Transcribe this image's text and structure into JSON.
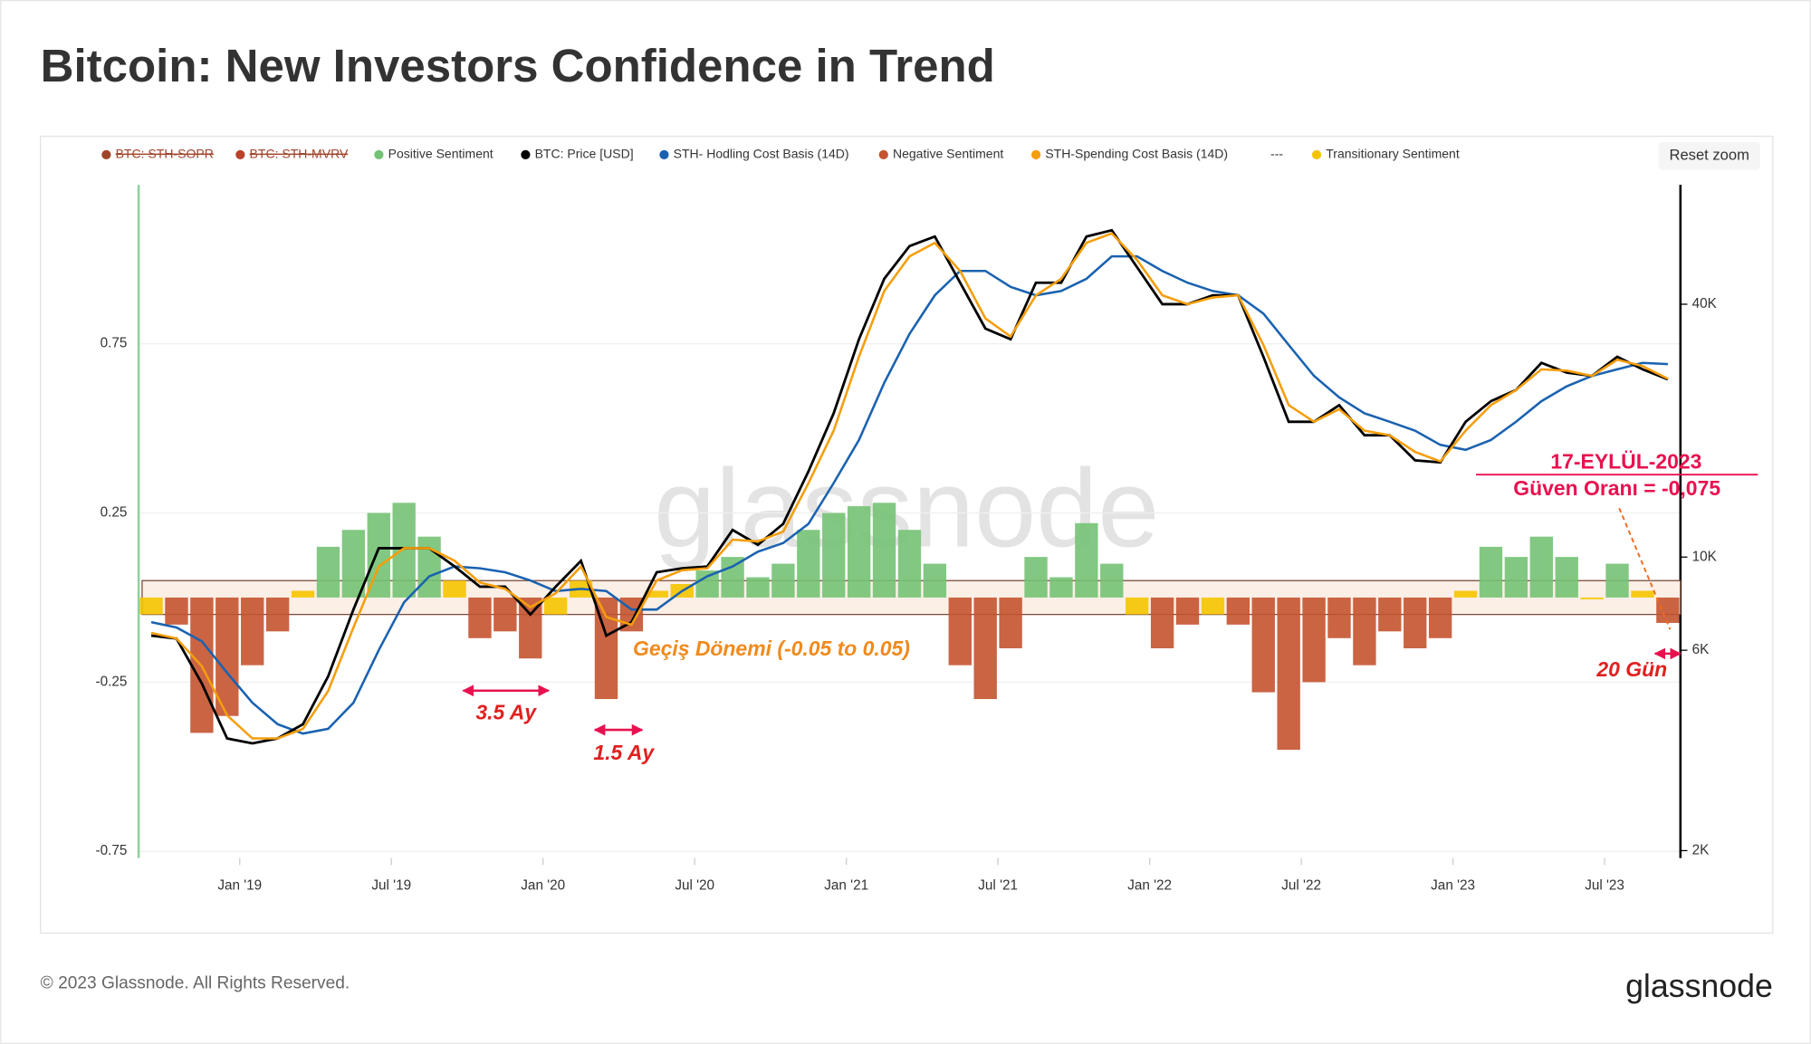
{
  "chart_data": {
    "type": "combo",
    "title": "Bitcoin: New Investors Confidence in Trend",
    "x": [
      "2018-09",
      "2018-10",
      "2018-11",
      "2018-12",
      "2019-01",
      "2019-02",
      "2019-03",
      "2019-04",
      "2019-05",
      "2019-06",
      "2019-07",
      "2019-08",
      "2019-09",
      "2019-10",
      "2019-11",
      "2019-12",
      "2020-01",
      "2020-02",
      "2020-03",
      "2020-04",
      "2020-05",
      "2020-06",
      "2020-07",
      "2020-08",
      "2020-09",
      "2020-10",
      "2020-11",
      "2020-12",
      "2021-01",
      "2021-02",
      "2021-03",
      "2021-04",
      "2021-05",
      "2021-06",
      "2021-07",
      "2021-08",
      "2021-09",
      "2021-10",
      "2021-11",
      "2021-12",
      "2022-01",
      "2022-02",
      "2022-03",
      "2022-04",
      "2022-05",
      "2022-06",
      "2022-07",
      "2022-08",
      "2022-09",
      "2022-10",
      "2022-11",
      "2022-12",
      "2023-01",
      "2023-02",
      "2023-03",
      "2023-04",
      "2023-05",
      "2023-06",
      "2023-07",
      "2023-08",
      "2023-09"
    ],
    "xlim": [
      "2018-09",
      "2023-10"
    ],
    "xticks": [
      {
        "value": "2019-01",
        "label": "Jan '19"
      },
      {
        "value": "2019-07",
        "label": "Jul '19"
      },
      {
        "value": "2020-01",
        "label": "Jan '20"
      },
      {
        "value": "2020-07",
        "label": "Jul '20"
      },
      {
        "value": "2021-01",
        "label": "Jan '21"
      },
      {
        "value": "2021-07",
        "label": "Jul '21"
      },
      {
        "value": "2022-01",
        "label": "Jan '22"
      },
      {
        "value": "2022-07",
        "label": "Jul '22"
      },
      {
        "value": "2023-01",
        "label": "Jan '23"
      },
      {
        "value": "2023-07",
        "label": "Jul '23"
      }
    ],
    "ylim": [
      -0.77,
      1.22
    ],
    "yticks": [
      0.75,
      0.25,
      -0.25,
      -0.75
    ],
    "y2lim": [
      1920,
      77000
    ],
    "y2log": true,
    "y2ticks": [
      {
        "value": 40000,
        "label": "40K"
      },
      {
        "value": 10000,
        "label": "10K"
      },
      {
        "value": 6000,
        "label": "6K"
      },
      {
        "value": 2000,
        "label": "2K"
      }
    ],
    "transition_band": [
      -0.05,
      0.05
    ],
    "series": [
      {
        "name": "BTC: STH-SOPR",
        "color": "#a0432a",
        "visible": false
      },
      {
        "name": "BTC: STH-MVRV",
        "color": "#b8432a",
        "visible": false
      },
      {
        "name": "Positive Sentiment",
        "type": "bar",
        "color": "#74c274",
        "values": [
          null,
          null,
          null,
          null,
          null,
          null,
          null,
          0.15,
          0.2,
          0.25,
          0.28,
          0.18,
          null,
          null,
          null,
          null,
          null,
          null,
          null,
          null,
          null,
          null,
          0.08,
          0.12,
          0.06,
          0.1,
          0.2,
          0.25,
          0.27,
          0.28,
          0.2,
          0.1,
          null,
          null,
          null,
          0.12,
          0.06,
          0.22,
          0.1,
          null,
          null,
          null,
          null,
          null,
          null,
          null,
          null,
          null,
          null,
          null,
          null,
          null,
          null,
          0.15,
          0.12,
          0.18,
          0.12,
          null,
          0.1,
          null,
          null
        ]
      },
      {
        "name": "BTC: Price [USD]",
        "type": "line",
        "axis": "y2",
        "color": "#000000",
        "values": [
          6500,
          6400,
          5000,
          3700,
          3600,
          3700,
          4000,
          5200,
          7500,
          10500,
          10500,
          10500,
          9500,
          8500,
          8500,
          7300,
          8500,
          9800,
          6500,
          7000,
          9200,
          9400,
          9500,
          11600,
          10700,
          12000,
          16000,
          22000,
          33000,
          46000,
          55000,
          58000,
          45000,
          35000,
          33000,
          45000,
          45000,
          58000,
          60000,
          49000,
          40000,
          40000,
          42000,
          42000,
          30000,
          21000,
          21000,
          23000,
          19500,
          19500,
          17000,
          16800,
          21000,
          23500,
          25000,
          29000,
          27500,
          27000,
          30000,
          28000,
          26500
        ]
      },
      {
        "name": "STH- Hodling Cost Basis (14D)",
        "type": "line",
        "axis": "y2",
        "color": "#1a62b0",
        "values": [
          7000,
          6800,
          6300,
          5300,
          4500,
          4000,
          3800,
          3900,
          4500,
          6000,
          7800,
          9000,
          9500,
          9400,
          9200,
          8800,
          8300,
          8400,
          8300,
          7500,
          7500,
          8300,
          9000,
          9500,
          10300,
          10800,
          12000,
          15000,
          19000,
          26000,
          34000,
          42000,
          48000,
          48000,
          44000,
          42000,
          43000,
          46000,
          52000,
          52000,
          48000,
          45000,
          43000,
          42000,
          38000,
          32000,
          27000,
          24000,
          22000,
          21000,
          20000,
          18500,
          18000,
          19000,
          21000,
          23500,
          25500,
          27000,
          28000,
          29000,
          28800
        ]
      },
      {
        "name": "Negative Sentiment",
        "type": "bar",
        "color": "#c4532f",
        "values": [
          null,
          -0.08,
          -0.4,
          -0.35,
          -0.2,
          -0.1,
          null,
          null,
          null,
          null,
          null,
          null,
          null,
          -0.12,
          -0.1,
          -0.18,
          null,
          null,
          -0.3,
          -0.1,
          null,
          null,
          null,
          null,
          null,
          null,
          null,
          null,
          null,
          null,
          null,
          null,
          -0.2,
          -0.3,
          -0.15,
          null,
          null,
          null,
          null,
          null,
          -0.15,
          -0.08,
          null,
          -0.08,
          -0.28,
          -0.45,
          -0.25,
          -0.12,
          -0.2,
          -0.1,
          -0.15,
          -0.12,
          null,
          null,
          null,
          null,
          null,
          null,
          null,
          null,
          -0.075
        ]
      },
      {
        "name": "STH-Spending Cost Basis (14D)",
        "type": "line",
        "axis": "y2",
        "color": "#f59e0b",
        "values": [
          6600,
          6400,
          5500,
          4200,
          3700,
          3700,
          3900,
          4800,
          6800,
          9500,
          10500,
          10500,
          9800,
          8700,
          8400,
          7600,
          8200,
          9500,
          7200,
          6900,
          8800,
          9300,
          9400,
          11000,
          10900,
          11500,
          15000,
          20000,
          30000,
          43000,
          52000,
          56000,
          48000,
          37000,
          33500,
          42000,
          46000,
          56000,
          59000,
          51000,
          42000,
          40000,
          41500,
          42000,
          32000,
          23000,
          21000,
          22500,
          20000,
          19500,
          17800,
          16900,
          20000,
          23000,
          25000,
          28000,
          27800,
          27000,
          29500,
          28500,
          26600
        ]
      },
      {
        "name": "---",
        "visible": false
      },
      {
        "name": "Transitionary Sentiment",
        "type": "bar",
        "color": "#f5c400",
        "values": [
          -0.05,
          null,
          null,
          null,
          null,
          null,
          0.02,
          null,
          null,
          null,
          null,
          null,
          0.05,
          null,
          null,
          null,
          -0.05,
          0.05,
          null,
          null,
          0.02,
          0.04,
          null,
          null,
          null,
          null,
          null,
          null,
          null,
          null,
          null,
          null,
          null,
          null,
          null,
          null,
          null,
          null,
          null,
          -0.05,
          null,
          null,
          -0.05,
          null,
          null,
          null,
          null,
          null,
          null,
          null,
          null,
          null,
          0.02,
          null,
          null,
          null,
          null,
          0,
          null,
          0.02,
          null
        ]
      }
    ],
    "reset_zoom": "Reset zoom",
    "watermark": "glassnode",
    "annotations": [
      {
        "text": "Geçiş Dönemi (-0.05 to 0.05)"
      },
      {
        "text": "3.5 Ay"
      },
      {
        "text": "1.5 Ay"
      },
      {
        "text": "17-EYLÜL-2023"
      },
      {
        "text": "Güven Oranı = -0,075"
      },
      {
        "text": "20 Gün"
      }
    ]
  },
  "footer": {
    "copyright": "© 2023 Glassnode. All Rights Reserved.",
    "logo": "glassnode"
  }
}
